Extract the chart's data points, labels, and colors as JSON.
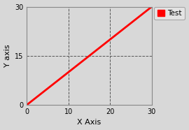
{
  "x": [
    0,
    30
  ],
  "y": [
    0,
    30
  ],
  "line_color": "#ff0000",
  "line_width": 2,
  "xlabel": "X Axis",
  "ylabel": "Y axis",
  "xlim": [
    0,
    30
  ],
  "ylim": [
    0,
    30
  ],
  "xticks": [
    0,
    10,
    20,
    30
  ],
  "yticks": [
    0,
    15,
    30
  ],
  "grid_linestyle": "--",
  "grid_color": "#555555",
  "legend_label": "Test",
  "legend_marker_color": "#ff0000",
  "fig_facecolor": "#d8d8d8",
  "axes_facecolor": "#d8d8d8",
  "legend_facecolor": "#e8e8e8",
  "legend_edgecolor": "#999999",
  "xlabel_fontsize": 8,
  "ylabel_fontsize": 8,
  "tick_fontsize": 7,
  "spine_color": "#888888"
}
